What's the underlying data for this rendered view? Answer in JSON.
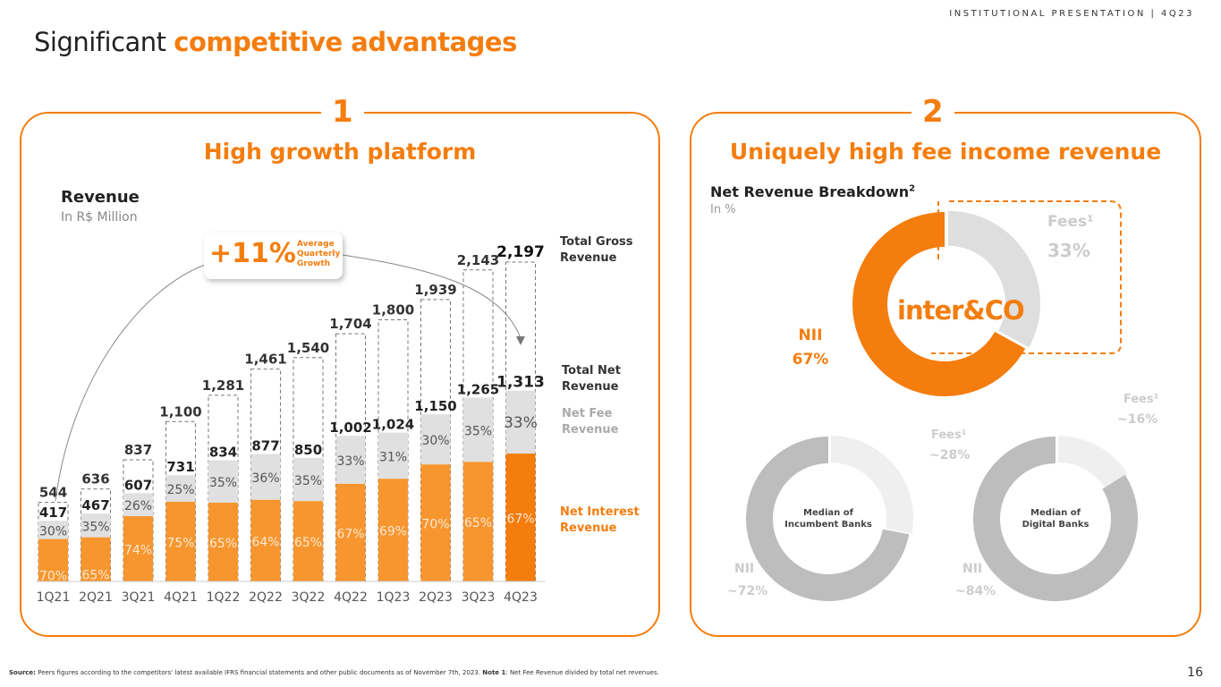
{
  "header": {
    "section": "INSTITUTIONAL PRESENTATION | 4Q23",
    "title_plain": "Significant",
    "title_accent": "competitive advantages"
  },
  "panel1": {
    "number": "1",
    "title": "High growth platform",
    "chart_title": "Revenue",
    "chart_subtitle": "In R$ Million",
    "growth_value": "+11%",
    "growth_label": "Average Quarterly Growth",
    "legend": {
      "gross": "Total Gross Revenue",
      "net": "Total Net Revenue",
      "fee": "Net Fee Revenue",
      "nii": "Net Interest Revenue"
    }
  },
  "panel2": {
    "number": "2",
    "title": "Uniquely high fee income revenue",
    "chart_title": "Net Revenue Breakdown",
    "chart_title_sup": "2",
    "chart_subtitle": "In %",
    "logo": "inter&CO"
  },
  "chart_data": [
    {
      "type": "bar",
      "title": "Revenue",
      "subtitle": "In R$ Million",
      "categories": [
        "1Q21",
        "2Q21",
        "3Q21",
        "4Q21",
        "1Q22",
        "2Q22",
        "3Q22",
        "4Q22",
        "1Q23",
        "2Q23",
        "3Q23",
        "4Q23"
      ],
      "series": [
        {
          "name": "Total Gross Revenue",
          "values": [
            544,
            636,
            837,
            1100,
            1281,
            1461,
            1540,
            1704,
            1800,
            1939,
            2143,
            2197
          ]
        },
        {
          "name": "Total Net Revenue",
          "values": [
            417,
            467,
            607,
            731,
            834,
            877,
            850,
            1002,
            1024,
            1150,
            1265,
            1313
          ]
        },
        {
          "name": "Net Fee Revenue %",
          "values": [
            "30%",
            "35%",
            "26%",
            "25%",
            "35%",
            "36%",
            "35%",
            "33%",
            "31%",
            "30%",
            "35%",
            "33%"
          ]
        },
        {
          "name": "Net Interest Revenue %",
          "values": [
            "70%",
            "65%",
            "74%",
            "75%",
            "65%",
            "64%",
            "65%",
            "67%",
            "69%",
            "70%",
            "65%",
            "67%"
          ]
        }
      ],
      "labels_gross": [
        "544",
        "636",
        "837",
        "1,100",
        "1,281",
        "1,461",
        "1,540",
        "1,704",
        "1,800",
        "1,939",
        "2,143",
        "2,197"
      ],
      "labels_net": [
        "417",
        "467",
        "607",
        "731",
        "834",
        "877",
        "850",
        "1,002",
        "1,024",
        "1,150",
        "1,265",
        "1,313"
      ],
      "colors": {
        "nii": "#f7962f",
        "nii_last": "#f47d0e",
        "fee": "#e0e0e0"
      }
    },
    {
      "type": "pie",
      "title": "Net Revenue Breakdown (inter&CO)",
      "slices": [
        {
          "label": "Fees¹",
          "value": 33,
          "text": "33%",
          "color": "#dedede"
        },
        {
          "label": "NII",
          "value": 67,
          "text": "67%",
          "color": "#f47d0e"
        }
      ]
    },
    {
      "type": "pie",
      "title": "Median of Incumbent Banks",
      "slices": [
        {
          "label": "Fees¹",
          "value": 28,
          "text": "~28%",
          "color": "#efefef"
        },
        {
          "label": "NII",
          "value": 72,
          "text": "~72%",
          "color": "#bdbdbd"
        }
      ]
    },
    {
      "type": "pie",
      "title": "Median of Digital Banks",
      "slices": [
        {
          "label": "Fees¹",
          "value": 16,
          "text": "~16%",
          "color": "#efefef"
        },
        {
          "label": "NII",
          "value": 84,
          "text": "~84%",
          "color": "#bdbdbd"
        }
      ]
    }
  ],
  "footer": {
    "source_label": "Source:",
    "source": "Peers figures according to the competitors' latest available IFRS financial statements and other public documents as of November 7th, 2023.",
    "note_label": "Note 1",
    "note": ": Net Fee Revenue divided by total net revenues.",
    "page": "16"
  }
}
